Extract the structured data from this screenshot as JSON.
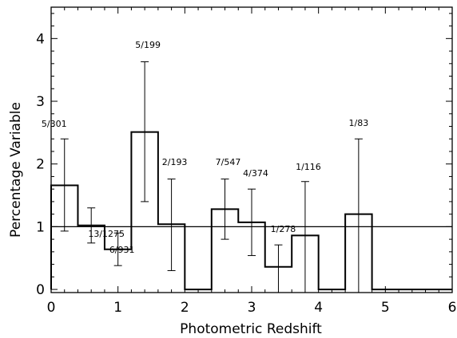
{
  "chart_data": {
    "type": "bar",
    "title": "",
    "xlabel": "Photometric Redshift",
    "ylabel": "Percentage Variable",
    "xlim": [
      0,
      6
    ],
    "ylim": [
      -0.05,
      4.5
    ],
    "xticks": [
      "0",
      "1",
      "2",
      "3",
      "4",
      "5",
      "6"
    ],
    "yticks": [
      "0",
      "1",
      "2",
      "3",
      "4"
    ],
    "grid": false,
    "reference_line": 1.0,
    "bin_width": 0.4,
    "bins": [
      {
        "x_start": 0.0,
        "x_end": 0.4,
        "x_center": 0.2,
        "value": 1.66,
        "err_low": 0.93,
        "err_high": 2.4,
        "label": "5/301"
      },
      {
        "x_start": 0.4,
        "x_end": 0.8,
        "x_center": 0.6,
        "value": 1.02,
        "err_low": 0.74,
        "err_high": 1.3,
        "label": "13/1275"
      },
      {
        "x_start": 0.8,
        "x_end": 1.2,
        "x_center": 1.0,
        "value": 0.64,
        "err_low": 0.38,
        "err_high": 0.9,
        "label": "6/931"
      },
      {
        "x_start": 1.2,
        "x_end": 1.6,
        "x_center": 1.4,
        "value": 2.51,
        "err_low": 1.4,
        "err_high": 3.63,
        "label": "5/199"
      },
      {
        "x_start": 1.6,
        "x_end": 2.0,
        "x_center": 1.8,
        "value": 1.04,
        "err_low": 0.3,
        "err_high": 1.76,
        "label": "2/193"
      },
      {
        "x_start": 2.0,
        "x_end": 2.4,
        "x_center": 2.2,
        "value": 0.0,
        "label": ""
      },
      {
        "x_start": 2.4,
        "x_end": 2.8,
        "x_center": 2.6,
        "value": 1.28,
        "err_low": 0.8,
        "err_high": 1.76,
        "label": "7/547"
      },
      {
        "x_start": 2.8,
        "x_end": 3.2,
        "x_center": 3.0,
        "value": 1.07,
        "err_low": 0.54,
        "err_high": 1.6,
        "label": "4/374"
      },
      {
        "x_start": 3.2,
        "x_end": 3.6,
        "x_center": 3.4,
        "value": 0.36,
        "err_low": 0.0,
        "err_high": 0.71,
        "label": "1/278"
      },
      {
        "x_start": 3.6,
        "x_end": 4.0,
        "x_center": 3.8,
        "value": 0.86,
        "err_low": 0.0,
        "err_high": 1.72,
        "label": "1/116"
      },
      {
        "x_start": 4.0,
        "x_end": 4.4,
        "x_center": 4.2,
        "value": 0.0,
        "label": ""
      },
      {
        "x_start": 4.4,
        "x_end": 4.8,
        "x_center": 4.6,
        "value": 1.2,
        "err_low": 0.0,
        "err_high": 2.4,
        "label": "1/83"
      },
      {
        "x_start": 4.8,
        "x_end": 6.0,
        "x_center": 5.4,
        "value": 0.0,
        "label": ""
      }
    ]
  }
}
